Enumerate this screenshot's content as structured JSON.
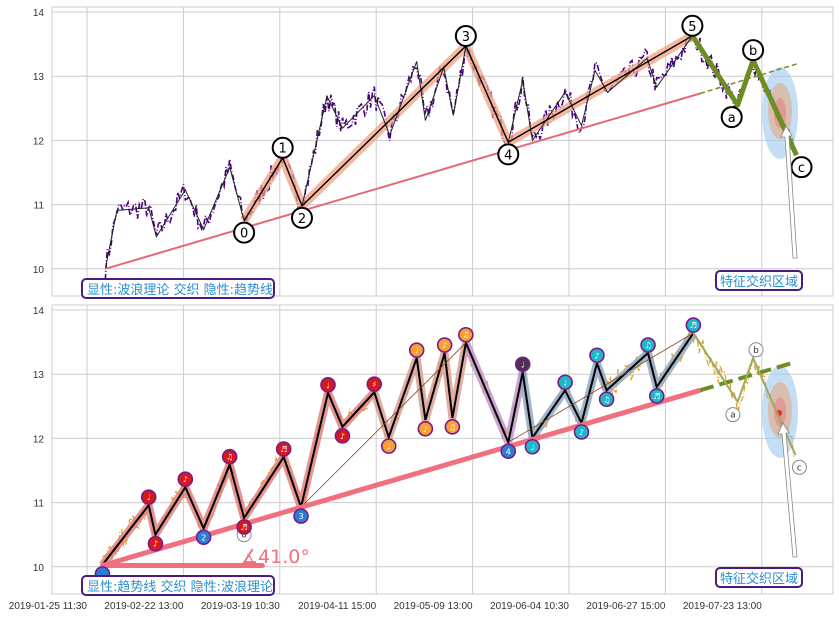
{
  "chart_data": [
    {
      "type": "line",
      "panel": "top",
      "yticks": [
        "14",
        "13",
        "12",
        "11",
        "10"
      ],
      "ylim": [
        9.55,
        14.1
      ],
      "annotation_label": "显性:波浪理论 交织 隐性:趋势线",
      "zone_label": "特征交织区域",
      "price_color": "#4b0082",
      "zigzag": [
        [
          19,
          10.0
        ],
        [
          31,
          10.91
        ],
        [
          64,
          10.95
        ],
        [
          72,
          10.5
        ],
        [
          102,
          11.23
        ],
        [
          121,
          10.61
        ],
        [
          148,
          11.58
        ],
        [
          163,
          10.75
        ],
        [
          203,
          11.73
        ],
        [
          223,
          10.98
        ],
        [
          249,
          12.69
        ],
        [
          265,
          12.19
        ],
        [
          298,
          12.7
        ],
        [
          314,
          12.08
        ],
        [
          342,
          13.23
        ],
        [
          351,
          12.31
        ],
        [
          370,
          13.14
        ],
        [
          380,
          12.39
        ],
        [
          393,
          13.47
        ],
        [
          437,
          11.97
        ],
        [
          452,
          12.94
        ],
        [
          462,
          12.0
        ],
        [
          496,
          12.75
        ],
        [
          513,
          12.23
        ],
        [
          527,
          13.09
        ],
        [
          540,
          12.75
        ],
        [
          581,
          13.28
        ],
        [
          591,
          12.83
        ],
        [
          628,
          13.63
        ]
      ],
      "waves": [
        {
          "label": "0",
          "x": 163,
          "y": 10.75,
          "pos": "below"
        },
        {
          "label": "1",
          "x": 203,
          "y": 11.73,
          "pos": "above"
        },
        {
          "label": "2",
          "x": 223,
          "y": 10.98,
          "pos": "below"
        },
        {
          "label": "3",
          "x": 393,
          "y": 13.47,
          "pos": "above"
        },
        {
          "label": "4",
          "x": 437,
          "y": 11.97,
          "pos": "below"
        },
        {
          "label": "5",
          "x": 628,
          "y": 13.63,
          "pos": "above"
        }
      ],
      "correction": [
        {
          "label": "a",
          "x": 675,
          "y": 12.55,
          "pos": "below"
        },
        {
          "label": "b",
          "x": 691,
          "y": 13.25,
          "pos": "above"
        },
        {
          "label": "c",
          "x": 736,
          "y": 11.77,
          "pos": "below"
        }
      ],
      "trendline": [
        [
          19,
          10.0
        ],
        [
          636,
          12.73
        ]
      ],
      "trend_extension": [
        [
          636,
          12.73
        ],
        [
          736,
          13.19
        ]
      ],
      "colors": {
        "band": "#f0a080",
        "trend": "#e86878",
        "correction": "#6b8e23"
      }
    },
    {
      "type": "line",
      "panel": "bottom",
      "yticks": [
        "14",
        "13",
        "12",
        "11",
        "10"
      ],
      "ylim": [
        9.55,
        14.1
      ],
      "annotation_label": "显性:趋势线 交织 隐性:波浪理论",
      "zone_label": "特征交织区域",
      "angle_label": "∡41.0°",
      "price_color": "#e8a020",
      "zigzag": [
        [
          16,
          10.03
        ],
        [
          64,
          10.96
        ],
        [
          71,
          10.5
        ],
        [
          102,
          11.24
        ],
        [
          121,
          10.6
        ],
        [
          148,
          11.59
        ],
        [
          163,
          10.76
        ],
        [
          204,
          11.71
        ],
        [
          222,
          10.93
        ],
        [
          250,
          12.71
        ],
        [
          265,
          12.18
        ],
        [
          298,
          12.72
        ],
        [
          313,
          12.02
        ],
        [
          342,
          13.25
        ],
        [
          351,
          12.29
        ],
        [
          371,
          13.33
        ],
        [
          379,
          12.32
        ],
        [
          393,
          13.49
        ],
        [
          437,
          11.94
        ],
        [
          452,
          13.03
        ],
        [
          462,
          12.01
        ],
        [
          496,
          12.75
        ],
        [
          513,
          12.24
        ],
        [
          529,
          13.17
        ],
        [
          539,
          12.75
        ],
        [
          582,
          13.33
        ],
        [
          591,
          12.8
        ],
        [
          629,
          13.64
        ]
      ],
      "markers": [
        {
          "i": 0,
          "color": "#2a7fd4",
          "glyph": "",
          "pos": "below"
        },
        {
          "i": 1,
          "color": "#d7191c",
          "glyph": "♩",
          "pos": "above"
        },
        {
          "i": 2,
          "color": "#d7191c",
          "glyph": "♪",
          "pos": "below"
        },
        {
          "i": 3,
          "color": "#d7191c",
          "glyph": "♪",
          "pos": "above"
        },
        {
          "i": 4,
          "color": "#2a7fd4",
          "glyph": "2",
          "pos": "below"
        },
        {
          "i": 5,
          "color": "#d7191c",
          "glyph": "♫",
          "pos": "above"
        },
        {
          "i": 6,
          "color": "#d7191c",
          "glyph": "♬",
          "pos": "below"
        },
        {
          "i": 7,
          "color": "#d7191c",
          "glyph": "♬",
          "pos": "above"
        },
        {
          "i": 8,
          "color": "#2a7fd4",
          "glyph": "3",
          "pos": "below"
        },
        {
          "i": 9,
          "color": "#d7191c",
          "glyph": "♩",
          "pos": "above"
        },
        {
          "i": 10,
          "color": "#d7191c",
          "glyph": "♪",
          "pos": "below"
        },
        {
          "i": 11,
          "color": "#d7191c",
          "glyph": "♯",
          "pos": "above"
        },
        {
          "i": 12,
          "color": "#f5a030",
          "glyph": "♩",
          "pos": "below"
        },
        {
          "i": 13,
          "color": "#f5a030",
          "glyph": "♩",
          "pos": "above"
        },
        {
          "i": 14,
          "color": "#f5a030",
          "glyph": "♪",
          "pos": "below"
        },
        {
          "i": 15,
          "color": "#f5a030",
          "glyph": "♪",
          "pos": "above"
        },
        {
          "i": 16,
          "color": "#f5a030",
          "glyph": "♫",
          "pos": "below"
        },
        {
          "i": 17,
          "color": "#f5a030",
          "glyph": "♫",
          "pos": "above"
        },
        {
          "i": 18,
          "color": "#2a7fd4",
          "glyph": "4",
          "pos": "below"
        },
        {
          "i": 19,
          "color": "#503050",
          "glyph": "♩",
          "pos": "above"
        },
        {
          "i": 20,
          "color": "#20b8c8",
          "glyph": "♩",
          "pos": "below"
        },
        {
          "i": 21,
          "color": "#20b8c8",
          "glyph": "♩",
          "pos": "above"
        },
        {
          "i": 22,
          "color": "#20b8c8",
          "glyph": "♪",
          "pos": "below"
        },
        {
          "i": 23,
          "color": "#20b8c8",
          "glyph": "♪",
          "pos": "above"
        },
        {
          "i": 24,
          "color": "#20b8c8",
          "glyph": "♫",
          "pos": "below"
        },
        {
          "i": 25,
          "color": "#20b8c8",
          "glyph": "♫",
          "pos": "above"
        },
        {
          "i": 26,
          "color": "#20b8c8",
          "glyph": "♬",
          "pos": "below"
        },
        {
          "i": 27,
          "color": "#20b8c8",
          "glyph": "♬",
          "pos": "above"
        }
      ],
      "bands": [
        {
          "from": 0,
          "to": 11,
          "color": "#e07878"
        },
        {
          "from": 11,
          "to": 17,
          "color": "#d89890"
        },
        {
          "from": 17,
          "to": 19,
          "color": "#c090c8"
        },
        {
          "from": 19,
          "to": 27,
          "color": "#8aa4c0"
        }
      ],
      "ghost_labels": [
        {
          "label": "0",
          "x": 163,
          "y": 10.5
        },
        {
          "label": "a",
          "x": 670,
          "y": 12.37
        },
        {
          "label": "b",
          "x": 694,
          "y": 13.38
        },
        {
          "label": "c",
          "x": 739,
          "y": 11.55
        }
      ],
      "correction": [
        [
          629,
          13.64
        ],
        [
          675,
          12.57
        ],
        [
          691,
          13.25
        ],
        [
          735,
          11.74
        ]
      ],
      "trendline": [
        [
          16,
          10.02
        ],
        [
          636,
          12.75
        ]
      ],
      "angle_baseline": [
        [
          16,
          10.02
        ],
        [
          182,
          10.02
        ]
      ],
      "trend_extension": [
        [
          636,
          12.75
        ],
        [
          735,
          13.19
        ]
      ],
      "colors": {
        "trend": "#f07080",
        "correction": "#9aaa60",
        "extension": "#6b8e23"
      }
    }
  ],
  "x_ticks": [
    {
      "x": 0,
      "label": "2019-01-25 11:30"
    },
    {
      "x": 100,
      "label": "2019-02-22 13:00"
    },
    {
      "x": 200,
      "label": "2019-03-19 10:30"
    },
    {
      "x": 300,
      "label": "2019-04-11 15:00"
    },
    {
      "x": 400,
      "label": "2019-05-09 13:00"
    },
    {
      "x": 500,
      "label": "2019-06-04 10:30"
    },
    {
      "x": 600,
      "label": "2019-06-27 15:00"
    },
    {
      "x": 700,
      "label": "2019-07-23 13:00"
    }
  ]
}
